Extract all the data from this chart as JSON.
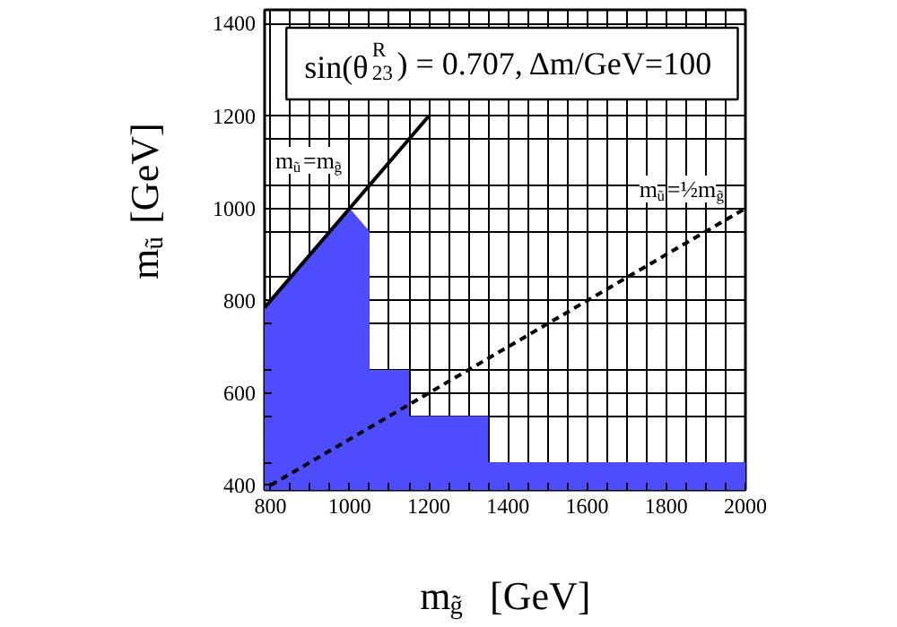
{
  "chart_data": {
    "type": "area",
    "title": "sin(θ$^{R}$$_{23}$) = 0.707, Δm/GeV=100",
    "xlabel": "m$_{g̃}$ [GeV]",
    "ylabel": "m$_{ũ}$ [GeV]",
    "xlim": [
      785,
      2000
    ],
    "ylim": [
      390,
      1430
    ],
    "xticks": [
      800,
      {
        "value": 850,
        "label": null
      },
      {
        "value": 900,
        "label": null
      },
      {
        "value": 950,
        "label": null
      },
      1000,
      {
        "value": 1050,
        "label": null
      },
      {
        "value": 1100,
        "label": null
      },
      {
        "value": 1150,
        "label": null
      },
      1200,
      {
        "value": 1250,
        "label": null
      },
      {
        "value": 1300,
        "label": null
      },
      {
        "value": 1350,
        "label": null
      },
      1400,
      {
        "value": 1450,
        "label": null
      },
      {
        "value": 1500,
        "label": null
      },
      {
        "value": 1550,
        "label": null
      },
      1600,
      {
        "value": 1650,
        "label": null
      },
      {
        "value": 1700,
        "label": null
      },
      {
        "value": 1750,
        "label": null
      },
      1800,
      {
        "value": 1850,
        "label": null
      },
      {
        "value": 1900,
        "label": null
      },
      {
        "value": 1950,
        "label": null
      },
      2000
    ],
    "yticks": [
      400,
      {
        "value": 450,
        "label": null
      },
      {
        "value": 550,
        "label": null
      },
      600,
      {
        "value": 650,
        "label": null
      },
      {
        "value": 750,
        "label": null
      },
      800,
      {
        "value": 850,
        "label": null
      },
      {
        "value": 950,
        "label": null
      },
      1000,
      {
        "value": 1050,
        "label": null
      },
      {
        "value": 1150,
        "label": null
      },
      1200,
      1400
    ],
    "grid": true,
    "series": [
      {
        "color": "#4d4dff",
        "x": [
          785,
          1000,
          1050,
          1050,
          1150,
          1150,
          1350,
          1350,
          2000
        ],
        "values": [
          785,
          1000,
          950,
          650,
          650,
          550,
          550,
          450,
          450
        ]
      },
      {
        "type": "line",
        "color": "#000000",
        "line_style": "solid",
        "x": [
          785,
          1200
        ],
        "values": [
          785,
          1200
        ]
      },
      {
        "type": "line",
        "color": "#000000",
        "line_style": "dashed",
        "x": [
          800,
          2000
        ],
        "values": [
          400,
          1000
        ]
      }
    ],
    "annotations": [
      "m$_{ũ}$=m$_{g̃}$",
      "m$_{ũ}$=½m$_{g̃}$"
    ]
  }
}
